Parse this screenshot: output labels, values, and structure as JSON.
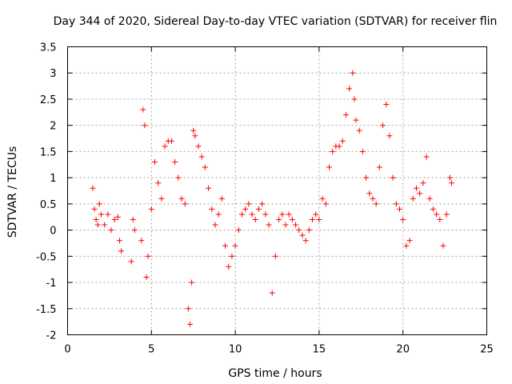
{
  "chart_data": {
    "type": "scatter",
    "title": "Day 344 of 2020, Sidereal Day-to-day VTEC variation (SDTVAR) for receiver flin",
    "xlabel": "GPS time / hours",
    "ylabel": "SDTVAR / TECUs",
    "xlim": [
      0,
      25
    ],
    "ylim": [
      -2,
      3.5
    ],
    "xticks": [
      0,
      5,
      10,
      15,
      20,
      25
    ],
    "yticks": [
      -2,
      -1.5,
      -1,
      -0.5,
      0,
      0.5,
      1,
      1.5,
      2,
      2.5,
      3,
      3.5
    ],
    "xtick_labels": [
      "0",
      "5",
      "10",
      "15",
      "20",
      "25"
    ],
    "ytick_labels": [
      "-2",
      "-1.5",
      "-1",
      "-0.5",
      "0",
      "0.5",
      "1",
      "1.5",
      "2",
      "2.5",
      "3",
      "3.5"
    ],
    "grid": true,
    "marker": "+",
    "color": "#ff0000",
    "series": [
      {
        "name": "SDTVAR",
        "x": [
          1.5,
          1.6,
          1.7,
          1.8,
          1.9,
          2.0,
          2.2,
          2.4,
          2.6,
          2.8,
          3.0,
          3.1,
          3.2,
          3.8,
          3.9,
          4.0,
          4.4,
          4.5,
          4.6,
          4.7,
          4.8,
          5.0,
          5.2,
          5.4,
          5.6,
          5.8,
          6.0,
          6.2,
          6.4,
          6.6,
          6.8,
          7.0,
          7.2,
          7.3,
          7.4,
          7.5,
          7.6,
          7.8,
          8.0,
          8.2,
          8.4,
          8.6,
          8.8,
          9.0,
          9.2,
          9.4,
          9.6,
          9.8,
          10.0,
          10.2,
          10.4,
          10.6,
          10.8,
          11.0,
          11.2,
          11.4,
          11.6,
          11.8,
          12.0,
          12.2,
          12.4,
          12.6,
          12.8,
          13.0,
          13.2,
          13.4,
          13.6,
          13.8,
          14.0,
          14.2,
          14.4,
          14.6,
          14.8,
          15.0,
          15.2,
          15.4,
          15.6,
          15.8,
          16.0,
          16.2,
          16.4,
          16.6,
          16.8,
          17.0,
          17.1,
          17.2,
          17.4,
          17.6,
          17.8,
          18.0,
          18.2,
          18.4,
          18.6,
          18.8,
          19.0,
          19.2,
          19.4,
          19.6,
          19.8,
          20.0,
          20.2,
          20.4,
          20.6,
          20.8,
          21.0,
          21.2,
          21.4,
          21.6,
          21.8,
          22.0,
          22.2,
          22.4,
          22.6,
          22.8,
          22.9
        ],
        "values": [
          0.8,
          0.4,
          0.2,
          0.1,
          0.5,
          0.3,
          0.1,
          0.3,
          0.0,
          0.2,
          0.25,
          -0.2,
          -0.4,
          -0.6,
          0.2,
          0.0,
          -0.2,
          2.3,
          2.0,
          -0.9,
          -0.5,
          0.4,
          1.3,
          0.9,
          0.6,
          1.6,
          1.7,
          1.7,
          1.3,
          1.0,
          0.6,
          0.5,
          -1.5,
          -1.8,
          -1.0,
          1.9,
          1.8,
          1.6,
          1.4,
          1.2,
          0.8,
          0.4,
          0.1,
          0.3,
          0.6,
          -0.3,
          -0.7,
          -0.5,
          -0.3,
          0.0,
          0.3,
          0.4,
          0.5,
          0.3,
          0.2,
          0.4,
          0.5,
          0.3,
          0.1,
          -1.2,
          -0.5,
          0.2,
          0.3,
          0.1,
          0.3,
          0.2,
          0.1,
          0.0,
          -0.1,
          -0.2,
          0.0,
          0.2,
          0.3,
          0.2,
          0.6,
          0.5,
          1.2,
          1.5,
          1.6,
          1.6,
          1.7,
          2.2,
          2.7,
          3.0,
          2.5,
          2.1,
          1.9,
          1.5,
          1.0,
          0.7,
          0.6,
          0.5,
          1.2,
          2.0,
          2.4,
          1.8,
          1.0,
          0.5,
          0.4,
          0.2,
          -0.3,
          -0.2,
          0.6,
          0.8,
          0.7,
          0.9,
          1.4,
          0.6,
          0.4,
          0.3,
          0.2,
          -0.3,
          0.3,
          1.0,
          0.9
        ]
      }
    ]
  }
}
